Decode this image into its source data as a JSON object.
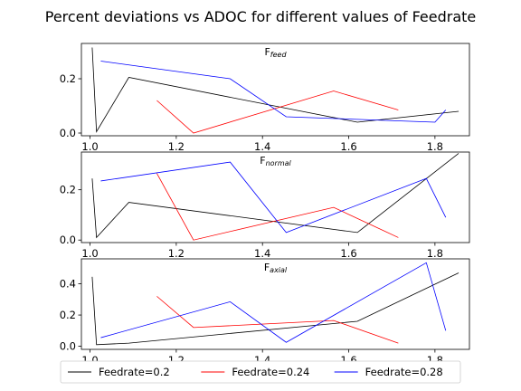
{
  "figure": {
    "title": "Percent deviations vs ADOC for different values of Feedrate"
  },
  "colors": {
    "Feedrate=0.2": "#000000",
    "Feedrate=0.24": "#ff0000",
    "Feedrate=0.28": "#0000ff"
  },
  "legend": {
    "placement": "bottom-center",
    "entries": [
      "Feedrate=0.2",
      "Feedrate=0.24",
      "Feedrate=0.28"
    ]
  },
  "chart_data": [
    {
      "type": "line",
      "title_main": "F",
      "title_sub": "feed",
      "xlim": [
        0.98,
        1.88
      ],
      "ylim": [
        -0.01,
        0.33
      ],
      "xticks": [
        1.0,
        1.2,
        1.4,
        1.6,
        1.8
      ],
      "xtick_labels": [
        "1.0",
        "1.2",
        "1.4",
        "1.6",
        "1.8"
      ],
      "yticks": [
        0.0,
        0.2
      ],
      "ytick_labels": [
        "0.0",
        "0.2"
      ],
      "series": [
        {
          "name": "Feedrate=0.2",
          "x": [
            1.005,
            1.015,
            1.09,
            1.62,
            1.855
          ],
          "y": [
            0.315,
            0.005,
            0.205,
            0.04,
            0.08
          ]
        },
        {
          "name": "Feedrate=0.24",
          "x": [
            1.155,
            1.24,
            1.565,
            1.715
          ],
          "y": [
            0.12,
            0.0,
            0.155,
            0.085
          ]
        },
        {
          "name": "Feedrate=0.28",
          "x": [
            1.025,
            1.325,
            1.455,
            1.8,
            1.825
          ],
          "y": [
            0.265,
            0.2,
            0.06,
            0.04,
            0.085
          ]
        }
      ]
    },
    {
      "type": "line",
      "title_main": "F",
      "title_sub": "normal",
      "xlim": [
        0.98,
        1.88
      ],
      "ylim": [
        -0.01,
        0.35
      ],
      "xticks": [
        1.0,
        1.2,
        1.4,
        1.6,
        1.8
      ],
      "xtick_labels": [
        "1.0",
        "1.2",
        "1.4",
        "1.6",
        "1.8"
      ],
      "yticks": [
        0.0,
        0.2
      ],
      "ytick_labels": [
        "0.0",
        "0.2"
      ],
      "series": [
        {
          "name": "Feedrate=0.2",
          "x": [
            1.005,
            1.015,
            1.09,
            1.62,
            1.855
          ],
          "y": [
            0.245,
            0.01,
            0.15,
            0.03,
            0.345
          ]
        },
        {
          "name": "Feedrate=0.24",
          "x": [
            1.155,
            1.24,
            1.565,
            1.715
          ],
          "y": [
            0.265,
            0.0,
            0.13,
            0.01
          ]
        },
        {
          "name": "Feedrate=0.28",
          "x": [
            1.025,
            1.325,
            1.455,
            1.78,
            1.825
          ],
          "y": [
            0.235,
            0.31,
            0.03,
            0.245,
            0.09
          ]
        }
      ]
    },
    {
      "type": "line",
      "title_main": "F",
      "title_sub": "axial",
      "xlim": [
        0.98,
        1.88
      ],
      "ylim": [
        -0.02,
        0.56
      ],
      "xticks": [
        1.0,
        1.2,
        1.4,
        1.6,
        1.8
      ],
      "xtick_labels": [
        "1.0",
        "1.2",
        "1.4",
        "1.6",
        "1.8"
      ],
      "yticks": [
        0.0,
        0.2,
        0.4
      ],
      "ytick_labels": [
        "0.0",
        "0.2",
        "0.4"
      ],
      "series": [
        {
          "name": "Feedrate=0.2",
          "x": [
            1.005,
            1.015,
            1.09,
            1.62,
            1.855
          ],
          "y": [
            0.445,
            0.01,
            0.02,
            0.16,
            0.47
          ]
        },
        {
          "name": "Feedrate=0.24",
          "x": [
            1.155,
            1.24,
            1.565,
            1.715
          ],
          "y": [
            0.32,
            0.12,
            0.165,
            0.02
          ]
        },
        {
          "name": "Feedrate=0.28",
          "x": [
            1.025,
            1.325,
            1.455,
            1.78,
            1.825
          ],
          "y": [
            0.055,
            0.285,
            0.025,
            0.535,
            0.1
          ]
        }
      ]
    }
  ]
}
